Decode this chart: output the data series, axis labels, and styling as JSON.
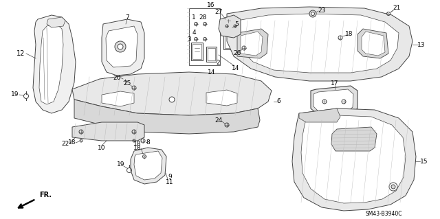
{
  "background_color": "#ffffff",
  "diagram_code": "SM43-B3940C",
  "fr_label": "FR.",
  "fig_width": 6.4,
  "fig_height": 3.19,
  "dpi": 100,
  "line_color": "#444444",
  "light_gray": "#888888",
  "lighter_gray": "#bbbbbb"
}
